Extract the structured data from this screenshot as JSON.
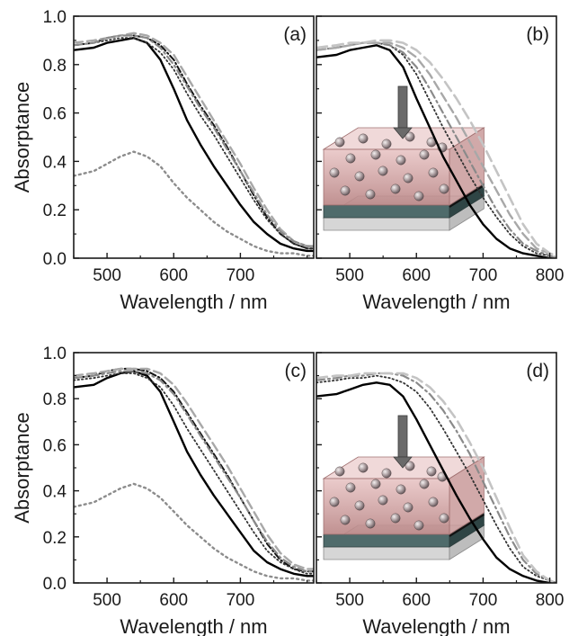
{
  "chart_data": [
    {
      "panel": "a",
      "type": "line",
      "panel_label": "(a)",
      "xlabel": "Wavelength / nm",
      "ylabel": "Absorptance",
      "xlim": [
        450,
        810
      ],
      "ylim": [
        0,
        1.0
      ],
      "xticks": [
        500,
        600,
        700
      ],
      "yticks": [
        0.0,
        0.2,
        0.4,
        0.6,
        0.8,
        1.0
      ],
      "inset": false,
      "series": [
        {
          "style": "solid-black",
          "x": [
            450,
            480,
            500,
            520,
            540,
            560,
            580,
            600,
            620,
            640,
            660,
            680,
            700,
            720,
            740,
            760,
            780,
            800,
            810
          ],
          "y": [
            0.86,
            0.87,
            0.89,
            0.9,
            0.91,
            0.89,
            0.82,
            0.7,
            0.57,
            0.47,
            0.38,
            0.3,
            0.22,
            0.15,
            0.1,
            0.06,
            0.04,
            0.03,
            0.03
          ]
        },
        {
          "style": "dashdot-black",
          "x": [
            450,
            480,
            500,
            520,
            540,
            560,
            580,
            600,
            620,
            640,
            660,
            680,
            700,
            720,
            740,
            760,
            780,
            800,
            810
          ],
          "y": [
            0.88,
            0.89,
            0.91,
            0.92,
            0.92,
            0.91,
            0.88,
            0.82,
            0.72,
            0.63,
            0.55,
            0.46,
            0.36,
            0.26,
            0.17,
            0.1,
            0.06,
            0.04,
            0.04
          ]
        },
        {
          "style": "dotted-black",
          "x": [
            450,
            480,
            500,
            520,
            540,
            560,
            580,
            600,
            620,
            640,
            660,
            680,
            700,
            720,
            740,
            760,
            780,
            800,
            810
          ],
          "y": [
            0.88,
            0.89,
            0.9,
            0.91,
            0.91,
            0.89,
            0.85,
            0.78,
            0.68,
            0.59,
            0.51,
            0.42,
            0.33,
            0.24,
            0.16,
            0.1,
            0.06,
            0.04,
            0.04
          ]
        },
        {
          "style": "dashed-gray",
          "x": [
            450,
            480,
            500,
            520,
            540,
            560,
            580,
            600,
            620,
            640,
            660,
            680,
            700,
            720,
            740,
            760,
            780,
            800,
            810
          ],
          "y": [
            0.89,
            0.9,
            0.91,
            0.92,
            0.93,
            0.92,
            0.89,
            0.84,
            0.75,
            0.66,
            0.57,
            0.48,
            0.39,
            0.29,
            0.2,
            0.12,
            0.07,
            0.05,
            0.05
          ]
        },
        {
          "style": "dashdot-gray",
          "x": [
            450,
            480,
            500,
            520,
            540,
            560,
            580,
            600,
            620,
            640,
            660,
            680,
            700,
            720,
            740,
            760,
            780,
            800,
            810
          ],
          "y": [
            0.88,
            0.89,
            0.91,
            0.92,
            0.92,
            0.91,
            0.87,
            0.8,
            0.71,
            0.62,
            0.54,
            0.45,
            0.36,
            0.27,
            0.18,
            0.11,
            0.07,
            0.05,
            0.05
          ]
        },
        {
          "style": "dotted-gray",
          "x": [
            450,
            480,
            500,
            520,
            540,
            560,
            580,
            600,
            620,
            640,
            660,
            680,
            700,
            720,
            740,
            760,
            780,
            800,
            810
          ],
          "y": [
            0.34,
            0.36,
            0.39,
            0.42,
            0.44,
            0.42,
            0.38,
            0.31,
            0.25,
            0.2,
            0.15,
            0.11,
            0.08,
            0.05,
            0.03,
            0.02,
            0.02,
            0.01,
            0.01
          ]
        }
      ]
    },
    {
      "panel": "b",
      "type": "line",
      "panel_label": "(b)",
      "xlabel": "Wavelength / nm",
      "ylabel": "",
      "xlim": [
        450,
        810
      ],
      "ylim": [
        0,
        1.0
      ],
      "xticks": [
        500,
        600,
        700,
        800
      ],
      "yticks": [
        0.0,
        0.2,
        0.4,
        0.6,
        0.8,
        1.0
      ],
      "inset": true,
      "series": [
        {
          "style": "solid-black",
          "x": [
            450,
            480,
            500,
            520,
            540,
            560,
            580,
            600,
            620,
            640,
            660,
            680,
            700,
            720,
            740,
            760,
            780,
            800,
            810
          ],
          "y": [
            0.83,
            0.84,
            0.86,
            0.87,
            0.88,
            0.86,
            0.79,
            0.66,
            0.54,
            0.42,
            0.32,
            0.22,
            0.14,
            0.08,
            0.04,
            0.02,
            0.01,
            0.0,
            0.0
          ]
        },
        {
          "style": "dotted-black",
          "x": [
            450,
            480,
            500,
            520,
            540,
            560,
            580,
            600,
            620,
            640,
            660,
            680,
            700,
            720,
            740,
            760,
            780,
            800,
            810
          ],
          "y": [
            0.86,
            0.87,
            0.88,
            0.89,
            0.89,
            0.88,
            0.84,
            0.76,
            0.65,
            0.54,
            0.44,
            0.34,
            0.25,
            0.17,
            0.1,
            0.05,
            0.02,
            0.01,
            0.0
          ]
        },
        {
          "style": "dashdot-gray",
          "x": [
            450,
            480,
            500,
            520,
            540,
            560,
            580,
            600,
            620,
            640,
            660,
            680,
            700,
            720,
            740,
            760,
            780,
            800,
            810
          ],
          "y": [
            0.86,
            0.87,
            0.88,
            0.89,
            0.89,
            0.88,
            0.85,
            0.79,
            0.7,
            0.6,
            0.5,
            0.4,
            0.3,
            0.2,
            0.12,
            0.06,
            0.03,
            0.01,
            0.0
          ]
        },
        {
          "style": "dashed-gray",
          "x": [
            450,
            480,
            500,
            520,
            540,
            560,
            580,
            600,
            620,
            640,
            660,
            680,
            700,
            720,
            740,
            760,
            780,
            800,
            810
          ],
          "y": [
            0.86,
            0.87,
            0.88,
            0.89,
            0.89,
            0.89,
            0.87,
            0.83,
            0.76,
            0.67,
            0.58,
            0.48,
            0.38,
            0.28,
            0.18,
            0.1,
            0.04,
            0.02,
            0.0
          ]
        },
        {
          "style": "dashed-lightgray",
          "x": [
            450,
            480,
            500,
            520,
            540,
            560,
            580,
            600,
            620,
            640,
            660,
            680,
            700,
            720,
            740,
            760,
            780,
            800,
            810
          ],
          "y": [
            0.87,
            0.88,
            0.89,
            0.89,
            0.9,
            0.9,
            0.89,
            0.86,
            0.81,
            0.74,
            0.66,
            0.57,
            0.47,
            0.36,
            0.25,
            0.14,
            0.06,
            0.02,
            0.01
          ]
        }
      ]
    },
    {
      "panel": "c",
      "type": "line",
      "panel_label": "(c)",
      "xlabel": "Wavelength / nm",
      "ylabel": "Absorptance",
      "xlim": [
        450,
        810
      ],
      "ylim": [
        0,
        1.0
      ],
      "xticks": [
        500,
        600,
        700
      ],
      "yticks": [
        0.0,
        0.2,
        0.4,
        0.6,
        0.8,
        1.0
      ],
      "inset": false,
      "series": [
        {
          "style": "solid-black",
          "x": [
            450,
            480,
            500,
            520,
            540,
            560,
            580,
            600,
            620,
            640,
            660,
            680,
            700,
            720,
            740,
            760,
            780,
            800,
            810
          ],
          "y": [
            0.85,
            0.86,
            0.89,
            0.91,
            0.92,
            0.9,
            0.83,
            0.7,
            0.57,
            0.47,
            0.38,
            0.3,
            0.22,
            0.14,
            0.09,
            0.06,
            0.04,
            0.03,
            0.03
          ]
        },
        {
          "style": "dashdot-black",
          "x": [
            450,
            480,
            500,
            520,
            540,
            560,
            580,
            600,
            620,
            640,
            660,
            680,
            700,
            720,
            740,
            760,
            780,
            800,
            810
          ],
          "y": [
            0.89,
            0.9,
            0.92,
            0.93,
            0.93,
            0.92,
            0.89,
            0.83,
            0.74,
            0.65,
            0.56,
            0.47,
            0.37,
            0.27,
            0.17,
            0.1,
            0.06,
            0.05,
            0.05
          ]
        },
        {
          "style": "dotted-black",
          "x": [
            450,
            480,
            500,
            520,
            540,
            560,
            580,
            600,
            620,
            640,
            660,
            680,
            700,
            720,
            740,
            760,
            780,
            800,
            810
          ],
          "y": [
            0.88,
            0.89,
            0.9,
            0.91,
            0.91,
            0.89,
            0.85,
            0.77,
            0.67,
            0.58,
            0.49,
            0.4,
            0.31,
            0.22,
            0.14,
            0.09,
            0.06,
            0.04,
            0.04
          ]
        },
        {
          "style": "dashed-gray",
          "x": [
            450,
            480,
            500,
            520,
            540,
            560,
            580,
            600,
            620,
            640,
            660,
            680,
            700,
            720,
            740,
            760,
            780,
            800,
            810
          ],
          "y": [
            0.9,
            0.91,
            0.92,
            0.93,
            0.93,
            0.93,
            0.91,
            0.86,
            0.78,
            0.69,
            0.6,
            0.51,
            0.41,
            0.31,
            0.21,
            0.13,
            0.08,
            0.06,
            0.06
          ]
        },
        {
          "style": "dashdot-gray",
          "x": [
            450,
            480,
            500,
            520,
            540,
            560,
            580,
            600,
            620,
            640,
            660,
            680,
            700,
            720,
            740,
            760,
            780,
            800,
            810
          ],
          "y": [
            0.89,
            0.9,
            0.91,
            0.92,
            0.92,
            0.91,
            0.88,
            0.82,
            0.73,
            0.64,
            0.55,
            0.46,
            0.37,
            0.27,
            0.18,
            0.11,
            0.07,
            0.05,
            0.05
          ]
        },
        {
          "style": "dotted-gray",
          "x": [
            450,
            480,
            500,
            520,
            540,
            560,
            580,
            600,
            620,
            640,
            660,
            680,
            700,
            720,
            740,
            760,
            780,
            800,
            810
          ],
          "y": [
            0.33,
            0.35,
            0.38,
            0.41,
            0.43,
            0.41,
            0.37,
            0.31,
            0.25,
            0.2,
            0.15,
            0.11,
            0.08,
            0.05,
            0.03,
            0.02,
            0.02,
            0.01,
            0.01
          ]
        }
      ]
    },
    {
      "panel": "d",
      "type": "line",
      "panel_label": "(d)",
      "xlabel": "Wavelength / nm",
      "ylabel": "",
      "xlim": [
        450,
        810
      ],
      "ylim": [
        0,
        1.0
      ],
      "xticks": [
        500,
        600,
        700,
        800
      ],
      "yticks": [
        0.0,
        0.2,
        0.4,
        0.6,
        0.8,
        1.0
      ],
      "inset": true,
      "series": [
        {
          "style": "solid-black",
          "x": [
            450,
            480,
            500,
            520,
            540,
            560,
            580,
            600,
            620,
            640,
            660,
            680,
            700,
            720,
            740,
            760,
            780,
            800,
            810
          ],
          "y": [
            0.81,
            0.82,
            0.84,
            0.86,
            0.87,
            0.86,
            0.81,
            0.71,
            0.6,
            0.49,
            0.38,
            0.28,
            0.19,
            0.11,
            0.06,
            0.03,
            0.01,
            0.0,
            0.0
          ]
        },
        {
          "style": "dotted-black",
          "x": [
            450,
            480,
            500,
            520,
            540,
            560,
            580,
            600,
            620,
            640,
            660,
            680,
            700,
            720,
            740,
            760,
            780,
            800,
            810
          ],
          "y": [
            0.87,
            0.88,
            0.89,
            0.89,
            0.9,
            0.89,
            0.87,
            0.83,
            0.76,
            0.67,
            0.57,
            0.47,
            0.36,
            0.25,
            0.15,
            0.07,
            0.03,
            0.01,
            0.0
          ]
        },
        {
          "style": "dashdot-gray",
          "x": [
            450,
            480,
            500,
            520,
            540,
            560,
            580,
            600,
            620,
            640,
            660,
            680,
            700,
            720,
            740,
            760,
            780,
            800,
            810
          ],
          "y": [
            0.88,
            0.89,
            0.9,
            0.9,
            0.91,
            0.91,
            0.9,
            0.87,
            0.82,
            0.75,
            0.66,
            0.56,
            0.44,
            0.32,
            0.2,
            0.1,
            0.04,
            0.01,
            0.0
          ]
        },
        {
          "style": "dashed-lightgray",
          "x": [
            450,
            480,
            500,
            520,
            540,
            560,
            580,
            600,
            620,
            640,
            660,
            680,
            700,
            720,
            740,
            760,
            780,
            800,
            810
          ],
          "y": [
            0.89,
            0.9,
            0.9,
            0.91,
            0.91,
            0.91,
            0.91,
            0.89,
            0.85,
            0.79,
            0.71,
            0.61,
            0.5,
            0.37,
            0.24,
            0.12,
            0.05,
            0.01,
            0.0
          ]
        }
      ]
    }
  ],
  "styles": {
    "solid-black": {
      "color": "#000000",
      "width": 2.4,
      "dash": ""
    },
    "dashdot-black": {
      "color": "#111111",
      "width": 2.0,
      "dash": "7 3 1.5 3"
    },
    "dotted-black": {
      "color": "#333333",
      "width": 1.8,
      "dash": "1.5 3"
    },
    "dashed-gray": {
      "color": "#a8a8a8",
      "width": 2.4,
      "dash": "10 5"
    },
    "dashdot-gray": {
      "color": "#8a8a8a",
      "width": 2.2,
      "dash": "9 4 2 4"
    },
    "dotted-gray": {
      "color": "#8c8c8c",
      "width": 2.4,
      "dash": "2 4"
    },
    "dashed-lightgray": {
      "color": "#c4c4c4",
      "width": 2.6,
      "dash": "12 6"
    }
  },
  "colors": {
    "inset_film": "#d9aaaa",
    "inset_substrate": "#4f6b6b",
    "inset_base": "#d6d6d6",
    "inset_arrow": "#6a6a6a"
  }
}
